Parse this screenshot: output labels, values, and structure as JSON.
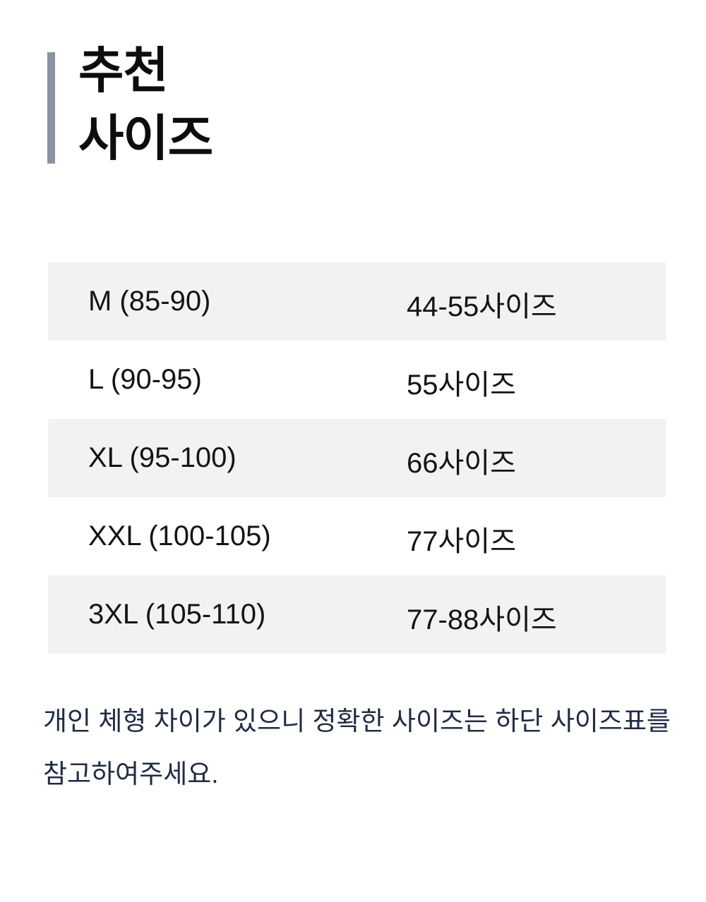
{
  "header": {
    "title_line1": "추천",
    "title_line2": "사이즈",
    "accent_bar_color": "#8A92A3",
    "title_color": "#0d0d0d"
  },
  "size_table": {
    "shaded_row_color": "#F2F2F4",
    "rows": [
      {
        "size_label": "M (85-90)",
        "kr_size": "44-55사이즈"
      },
      {
        "size_label": "L (90-95)",
        "kr_size": "55사이즈"
      },
      {
        "size_label": "XL (95-100)",
        "kr_size": "66사이즈"
      },
      {
        "size_label": "XXL (100-105)",
        "kr_size": "77사이즈"
      },
      {
        "size_label": "3XL (105-110)",
        "kr_size": "77-88사이즈"
      }
    ]
  },
  "note": {
    "line1": "개인 체형 차이가 있으니 정확한 사이즈는 하단 사이즈표를",
    "line2": "참고하여주세요.",
    "text_color": "#202B45"
  }
}
